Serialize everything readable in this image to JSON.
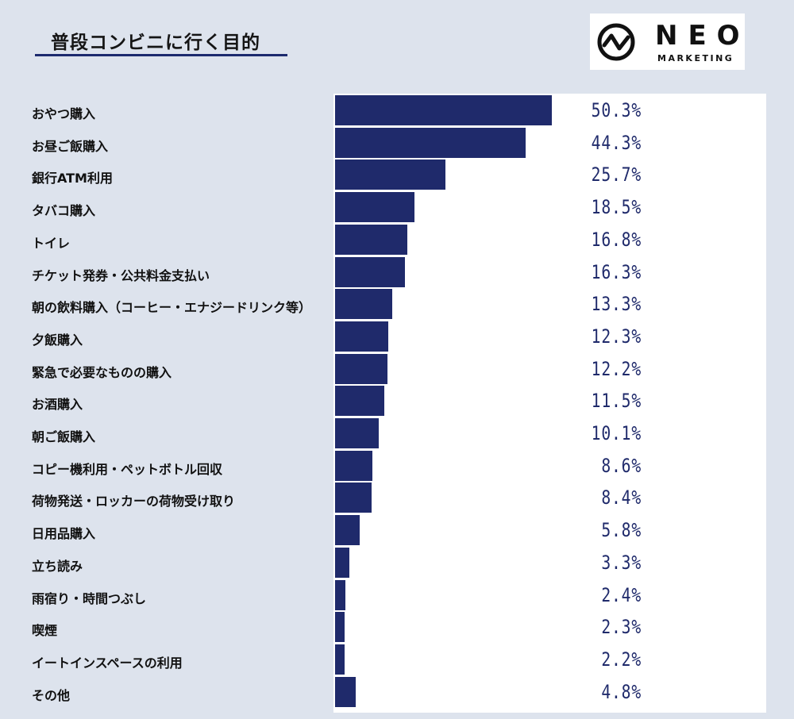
{
  "title": "普段コンビニに行く目的",
  "logo": {
    "word": "NEO",
    "sub": "MARKETING"
  },
  "colors": {
    "background": "#dde3ed",
    "bar": "#1f2a6b",
    "value_text": "#1f2a6b",
    "title_underline": "#1c2a6e"
  },
  "chart_data": {
    "type": "bar",
    "orientation": "horizontal",
    "title": "普段コンビニに行く目的",
    "xlabel": "",
    "ylabel": "",
    "unit": "%",
    "xlim": [
      0,
      100
    ],
    "grid": false,
    "legend": "none",
    "categories": [
      "おやつ購入",
      "お昼ご飯購入",
      "銀行ATM利用",
      "タバコ購入",
      "トイレ",
      "チケット発券・公共料金支払い",
      "朝の飲料購入（コーヒー・エナジードリンク等）",
      "夕飯購入",
      "緊急で必要なものの購入",
      "お酒購入",
      "朝ご飯購入",
      "コピー機利用・ペットボトル回収",
      "荷物発送・ロッカーの荷物受け取り",
      "日用品購入",
      "立ち読み",
      "雨宿り・時間つぶし",
      "喫煙",
      "イートインスペースの利用",
      "その他"
    ],
    "values": [
      50.3,
      44.3,
      25.7,
      18.5,
      16.8,
      16.3,
      13.3,
      12.3,
      12.2,
      11.5,
      10.1,
      8.6,
      8.4,
      5.8,
      3.3,
      2.4,
      2.3,
      2.2,
      4.8
    ],
    "value_labels": [
      "50.3%",
      "44.3%",
      "25.7%",
      "18.5%",
      "16.8%",
      "16.3%",
      "13.3%",
      "12.3%",
      "12.2%",
      "11.5%",
      "10.1%",
      "8.6%",
      "8.4%",
      "5.8%",
      "3.3%",
      "2.4%",
      "2.3%",
      "2.2%",
      "4.8%"
    ]
  }
}
